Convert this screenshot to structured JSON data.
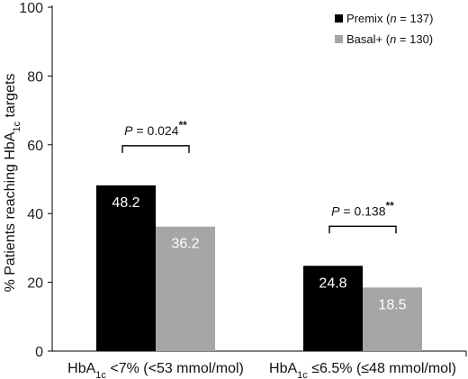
{
  "chart_data": {
    "type": "bar",
    "categories": [
      {
        "main": "HbA",
        "sub": "1c",
        "rest": " <7% (<53 mmol/mol)"
      },
      {
        "main": "HbA",
        "sub": "1c",
        "rest": " ≤6.5% (≤48 mmol/mol)"
      }
    ],
    "series": [
      {
        "name": "Premix (n = 137)",
        "name_parts": {
          "pre": "Premix (",
          "italic": "n",
          "post": " = 137)"
        },
        "color": "#000000",
        "values": [
          48.2,
          24.8
        ]
      },
      {
        "name": "Basal+ (n = 130)",
        "name_parts": {
          "pre": "Basal+ (",
          "italic": "n",
          "post": " = 130)"
        },
        "color": "#a6a6a6",
        "values": [
          36.2,
          18.5
        ]
      }
    ],
    "ylabel": {
      "pre": "% Patients reaching HbA",
      "sub": "1c",
      "post": " targets"
    },
    "ylim": [
      0,
      100
    ],
    "yticks": [
      0,
      20,
      40,
      60,
      80,
      100
    ],
    "grid": false,
    "legend_position": "top-right",
    "annotations": [
      {
        "category_index": 0,
        "italic": "P",
        "text": " = 0.024",
        "stars": "**"
      },
      {
        "category_index": 1,
        "italic": "P",
        "text": " = 0.138",
        "stars": "**"
      }
    ]
  }
}
